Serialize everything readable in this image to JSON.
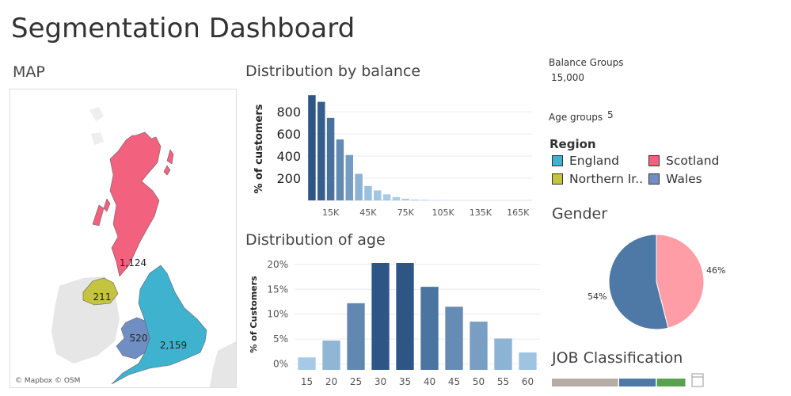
{
  "title": "Segmentation Dashboard",
  "map": {
    "title": "MAP",
    "attribution": "© Mapbox © OSM",
    "regions": [
      {
        "name": "Scotland",
        "label": "1,124"
      },
      {
        "name": "Northern Ireland",
        "label": "211"
      },
      {
        "name": "Wales",
        "label": "520"
      },
      {
        "name": "England",
        "label": "2,159"
      }
    ]
  },
  "controls": {
    "balance_groups_label": "Balance Groups",
    "balance_groups_value": "15,000",
    "age_groups_label": "Age groups",
    "age_groups_value": "5"
  },
  "legend": {
    "title": "Region",
    "items": [
      {
        "label": "England",
        "color": "#3FB2CF"
      },
      {
        "label": "Scotland",
        "color": "#F2617E"
      },
      {
        "label": "Northern Ir..",
        "color": "#C4C43E"
      },
      {
        "label": "Wales",
        "color": "#6F8FC4"
      }
    ]
  },
  "jobs": {
    "title": "JOB Classification",
    "segments": [
      {
        "color": "#B6ACA6",
        "fraction": 0.5
      },
      {
        "color": "#4E79A7",
        "fraction": 0.28
      },
      {
        "color": "#59A14F",
        "fraction": 0.22
      }
    ]
  },
  "chart_data": [
    {
      "type": "bar",
      "title": "Distribution by balance",
      "xlabel": "",
      "ylabel": "% of customers",
      "x": [
        0,
        7500,
        15000,
        22500,
        30000,
        37500,
        45000,
        52500,
        60000,
        67500,
        75000,
        82500,
        90000,
        97500,
        105000,
        112500,
        120000,
        127500,
        135000,
        142500,
        150000,
        157500,
        165000,
        172500
      ],
      "values": [
        950,
        890,
        745,
        550,
        410,
        240,
        130,
        90,
        55,
        30,
        15,
        8,
        5,
        3,
        2,
        1,
        1,
        1,
        1,
        0,
        0,
        0,
        0,
        0
      ],
      "x_tick_labels": [
        "15K",
        "45K",
        "75K",
        "105K",
        "135K",
        "165K"
      ],
      "x_tick_values": [
        15000,
        45000,
        75000,
        105000,
        135000,
        165000
      ],
      "y_ticks": [
        200,
        400,
        600,
        800
      ],
      "ylim": [
        0,
        980
      ],
      "grid": true
    },
    {
      "type": "bar",
      "title": "Distribution of age",
      "xlabel": "",
      "ylabel": "% of Customers",
      "categories": [
        "15",
        "20",
        "25",
        "30",
        "35",
        "40",
        "45",
        "50",
        "55",
        "60"
      ],
      "values": [
        1.3,
        4.7,
        12.2,
        20.5,
        20.5,
        15.5,
        11.5,
        8.5,
        5.1,
        2.3
      ],
      "y_ticks": [
        0,
        5,
        10,
        15,
        20
      ],
      "y_tick_labels": [
        "0%",
        "5%",
        "10%",
        "15%",
        "20%"
      ],
      "ylim": [
        -1.2,
        20.3
      ],
      "grid": true
    },
    {
      "type": "pie",
      "title": "Gender",
      "labels": [
        "46%",
        "54%"
      ],
      "values": [
        46,
        54
      ],
      "colors": [
        "#FF9DA7",
        "#4E79A7"
      ]
    }
  ]
}
